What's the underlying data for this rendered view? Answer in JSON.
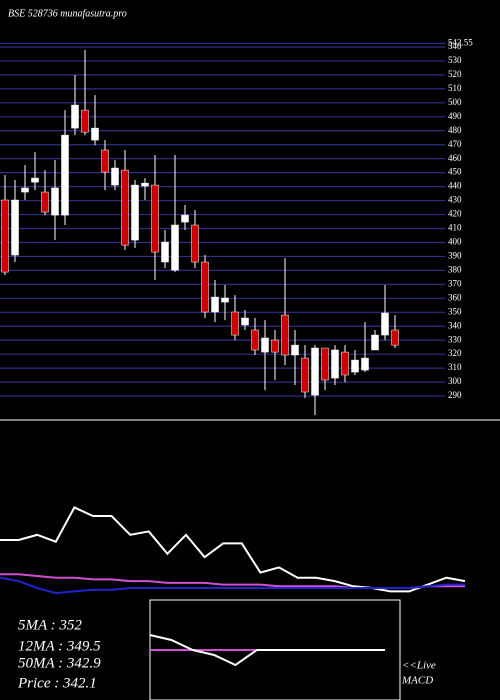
{
  "chart_data": [
    {
      "type": "candlestick",
      "title": "BSE 528736 munafasutra.pro",
      "up_color": "#ffffff",
      "down_color": "#cc0000",
      "grid": true,
      "grid_color": "#2e2e8a",
      "ylim": [
        270,
        545
      ],
      "yticks": [
        290,
        300,
        310,
        320,
        330,
        340,
        350,
        360,
        370,
        380,
        390,
        400,
        410,
        420,
        430,
        440,
        450,
        460,
        470,
        480,
        490,
        500,
        510,
        520,
        530,
        540,
        542.55
      ],
      "open": [
        430.4,
        391.0,
        436.1,
        443.2,
        436.1,
        419.6,
        419.6,
        481.9,
        494.8,
        473.3,
        466.2,
        441.1,
        451.8,
        401.7,
        440.4,
        441.1,
        386.0,
        380.2,
        414.6,
        412.5,
        386.0,
        350.2,
        357.3,
        350.2,
        340.9,
        337.3,
        321.5,
        330.1,
        348.0,
        319.4,
        317.2,
        290.7,
        324.4,
        302.9,
        321.5,
        307.2,
        308.6,
        323.0,
        333.7,
        337.3
      ],
      "high": [
        448.3,
        444.7,
        455.4,
        464.7,
        451.8,
        459.0,
        494.8,
        519.9,
        537.8,
        505.5,
        473.3,
        459.0,
        466.2,
        444.7,
        446.1,
        462.6,
        408.9,
        462.6,
        426.8,
        423.2,
        391.0,
        373.1,
        369.5,
        362.3,
        351.6,
        345.9,
        344.4,
        337.3,
        388.8,
        337.3,
        326.5,
        326.5,
        324.4,
        326.5,
        326.5,
        323.0,
        343.0,
        337.3,
        369.5,
        348.0
      ],
      "low": [
        376.7,
        386.0,
        430.4,
        437.5,
        419.6,
        401.7,
        412.5,
        476.9,
        476.9,
        469.7,
        437.5,
        437.5,
        394.6,
        396.0,
        430.4,
        373.1,
        381.7,
        378.8,
        408.9,
        381.7,
        345.9,
        343.0,
        344.4,
        330.1,
        337.3,
        319.4,
        294.3,
        301.5,
        312.2,
        297.9,
        288.6,
        276.4,
        294.3,
        297.9,
        300.0,
        305.1,
        307.2,
        323.0,
        330.1,
        324.4
      ],
      "close": [
        378.8,
        430.4,
        439.0,
        446.1,
        421.8,
        439.0,
        476.9,
        498.4,
        479.0,
        481.9,
        450.4,
        453.3,
        398.1,
        441.1,
        442.5,
        393.1,
        400.3,
        412.5,
        419.6,
        386.0,
        350.2,
        360.9,
        360.2,
        333.7,
        345.9,
        323.0,
        331.6,
        321.5,
        319.4,
        326.5,
        292.9,
        324.4,
        301.5,
        323.0,
        305.1,
        315.8,
        317.2,
        333.7,
        349.5,
        326.5
      ]
    },
    {
      "type": "line",
      "ylim": [
        -5,
        100
      ],
      "series": [
        {
          "color": "#ffffff",
          "values": [
            30,
            30,
            33,
            29,
            49,
            44,
            44,
            33,
            35,
            22,
            33,
            20,
            28,
            28,
            11,
            14,
            8,
            8,
            6,
            3,
            2,
            0,
            0,
            4,
            8,
            6
          ]
        },
        {
          "color": "#d24fd2",
          "values": [
            10,
            10,
            9,
            8,
            8,
            7,
            7,
            6,
            6,
            5,
            5,
            5,
            4,
            4,
            4,
            3,
            3,
            3,
            3,
            2,
            2,
            2,
            2,
            3,
            3,
            3
          ]
        },
        {
          "color": "#2222cc",
          "values": [
            8,
            6,
            2,
            -1,
            0,
            1,
            1,
            2,
            2,
            2,
            2,
            2,
            2,
            2,
            2,
            2,
            2,
            2,
            2,
            2,
            2,
            2,
            2,
            3,
            4,
            4
          ]
        }
      ]
    },
    {
      "type": "line",
      "ylim": [
        -10,
        10
      ],
      "series": [
        {
          "color": "#d24fd2",
          "values": [
            0,
            0,
            0,
            0,
            0,
            0,
            0,
            0,
            0,
            0,
            0,
            0
          ]
        },
        {
          "color": "#ffffff",
          "values": [
            3,
            2,
            0,
            -1,
            -3,
            0,
            0,
            0,
            0,
            0,
            0,
            0
          ]
        }
      ]
    }
  ],
  "legend": [
    "5MA : 352",
    "12MA : 349.5",
    "50MA : 342.9",
    "Price  : 342.1"
  ],
  "live": "<<Live",
  "macd": "MACD"
}
